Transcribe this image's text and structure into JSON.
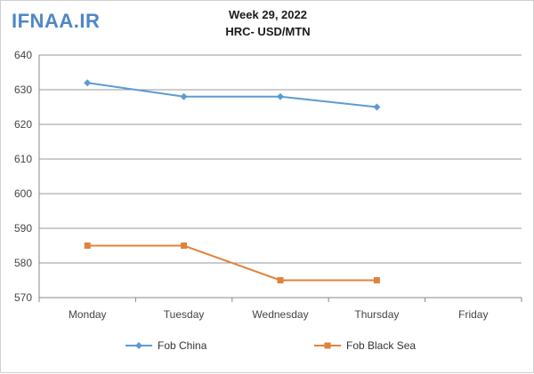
{
  "logo": "IFNAA.IR",
  "chart_data": {
    "type": "line",
    "title": "Week 29, 2022",
    "subtitle": "HRC- USD/MTN",
    "categories": [
      "Monday",
      "Tuesday",
      "Wednesday",
      "Thursday",
      "Friday"
    ],
    "series": [
      {
        "name": "Fob China",
        "color": "#5b9bd5",
        "marker": "diamond",
        "values": [
          632,
          628,
          628,
          625,
          null
        ]
      },
      {
        "name": "Fob Black Sea",
        "color": "#e0823a",
        "marker": "square",
        "values": [
          585,
          585,
          575,
          575,
          null
        ]
      }
    ],
    "ylim": [
      570,
      640
    ],
    "yticks": [
      570,
      580,
      590,
      600,
      610,
      620,
      630,
      640
    ],
    "grid": true,
    "legend": "bottom"
  }
}
